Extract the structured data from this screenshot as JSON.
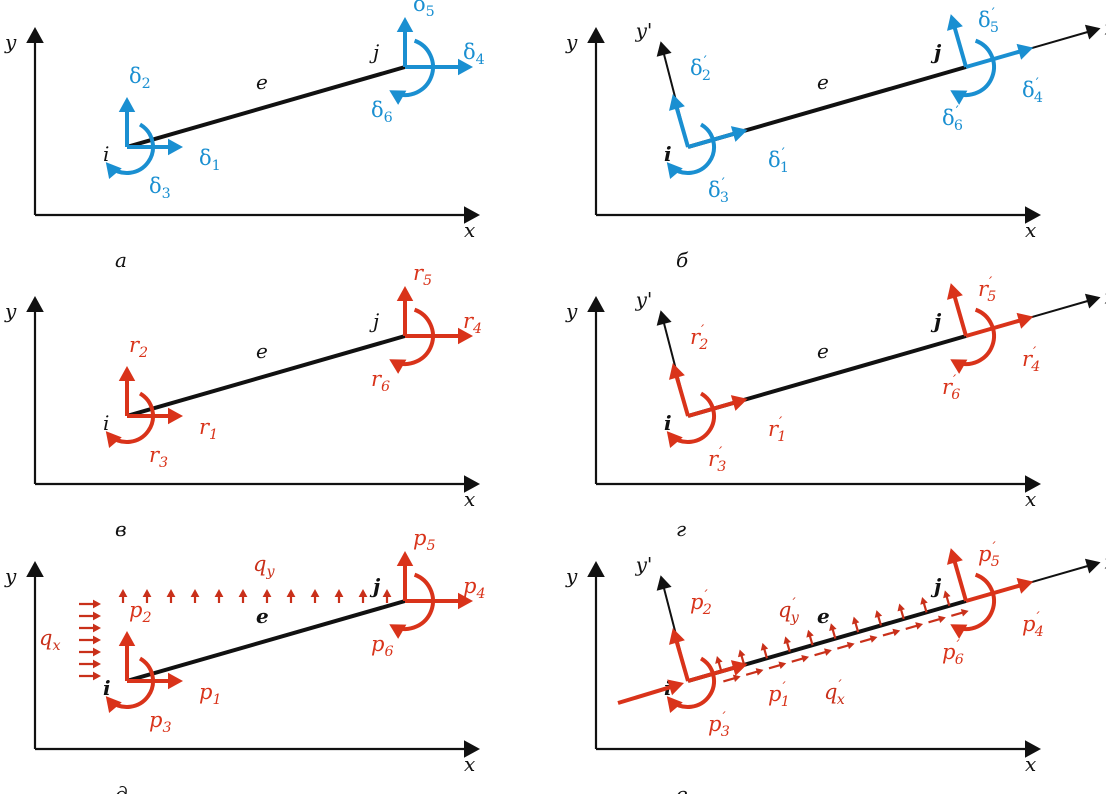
{
  "colors": {
    "axis": "#111111",
    "element": "#111111",
    "displacement": "#1a8fd1",
    "force": "#d9331a",
    "load": "#c9301a"
  },
  "axis_labels": {
    "x": "x",
    "y": "y",
    "x_local": "x'",
    "y_local": "y'"
  },
  "element_label": "e",
  "node_i": "i",
  "node_j": "j",
  "panels": [
    {
      "id": "a",
      "caption": "а",
      "family": "displacement",
      "local": false,
      "dof": [
        {
          "sym": "δ",
          "sub": "1",
          "prime": false
        },
        {
          "sym": "δ",
          "sub": "2",
          "prime": false
        },
        {
          "sym": "δ",
          "sub": "3",
          "prime": false
        },
        {
          "sym": "δ",
          "sub": "4",
          "prime": false
        },
        {
          "sym": "δ",
          "sub": "5",
          "prime": false
        },
        {
          "sym": "δ",
          "sub": "6",
          "prime": false
        }
      ]
    },
    {
      "id": "b",
      "caption": "б",
      "family": "displacement",
      "local": true,
      "dof": [
        {
          "sym": "δ",
          "sub": "1",
          "prime": true
        },
        {
          "sym": "δ",
          "sub": "2",
          "prime": true
        },
        {
          "sym": "δ",
          "sub": "3",
          "prime": true
        },
        {
          "sym": "δ",
          "sub": "4",
          "prime": true
        },
        {
          "sym": "δ",
          "sub": "5",
          "prime": true
        },
        {
          "sym": "δ",
          "sub": "6",
          "prime": true
        }
      ]
    },
    {
      "id": "v",
      "caption": "в",
      "family": "force",
      "local": false,
      "dof": [
        {
          "sym": "r",
          "sub": "1",
          "prime": false
        },
        {
          "sym": "r",
          "sub": "2",
          "prime": false
        },
        {
          "sym": "r",
          "sub": "3",
          "prime": false
        },
        {
          "sym": "r",
          "sub": "4",
          "prime": false
        },
        {
          "sym": "r",
          "sub": "5",
          "prime": false
        },
        {
          "sym": "r",
          "sub": "6",
          "prime": false
        }
      ]
    },
    {
      "id": "g",
      "caption": "г",
      "family": "force",
      "local": true,
      "dof": [
        {
          "sym": "r",
          "sub": "1",
          "prime": true
        },
        {
          "sym": "r",
          "sub": "2",
          "prime": true
        },
        {
          "sym": "r",
          "sub": "3",
          "prime": true
        },
        {
          "sym": "r",
          "sub": "4",
          "prime": true
        },
        {
          "sym": "r",
          "sub": "5",
          "prime": true
        },
        {
          "sym": "r",
          "sub": "6",
          "prime": true
        }
      ]
    },
    {
      "id": "d",
      "caption": "д",
      "family": "force",
      "local": false,
      "loads": {
        "qx": {
          "sym": "q",
          "sub": "x",
          "prime": false
        },
        "qy": {
          "sym": "q",
          "sub": "y",
          "prime": false
        }
      },
      "dof": [
        {
          "sym": "p",
          "sub": "1",
          "prime": false
        },
        {
          "sym": "p",
          "sub": "2",
          "prime": false
        },
        {
          "sym": "p",
          "sub": "3",
          "prime": false
        },
        {
          "sym": "p",
          "sub": "4",
          "prime": false
        },
        {
          "sym": "p",
          "sub": "5",
          "prime": false
        },
        {
          "sym": "p",
          "sub": "6",
          "prime": false
        }
      ]
    },
    {
      "id": "e",
      "caption": "е",
      "family": "force",
      "local": true,
      "loads": {
        "qx": {
          "sym": "q",
          "sub": "x",
          "prime": true
        },
        "qy": {
          "sym": "q",
          "sub": "y",
          "prime": true
        }
      },
      "dof": [
        {
          "sym": "p",
          "sub": "1",
          "prime": true
        },
        {
          "sym": "p",
          "sub": "2",
          "prime": true
        },
        {
          "sym": "p",
          "sub": "3",
          "prime": true
        },
        {
          "sym": "p",
          "sub": "4",
          "prime": true
        },
        {
          "sym": "p",
          "sub": "5",
          "prime": true
        },
        {
          "sym": "p",
          "sub": "6",
          "prime": true
        }
      ]
    }
  ]
}
